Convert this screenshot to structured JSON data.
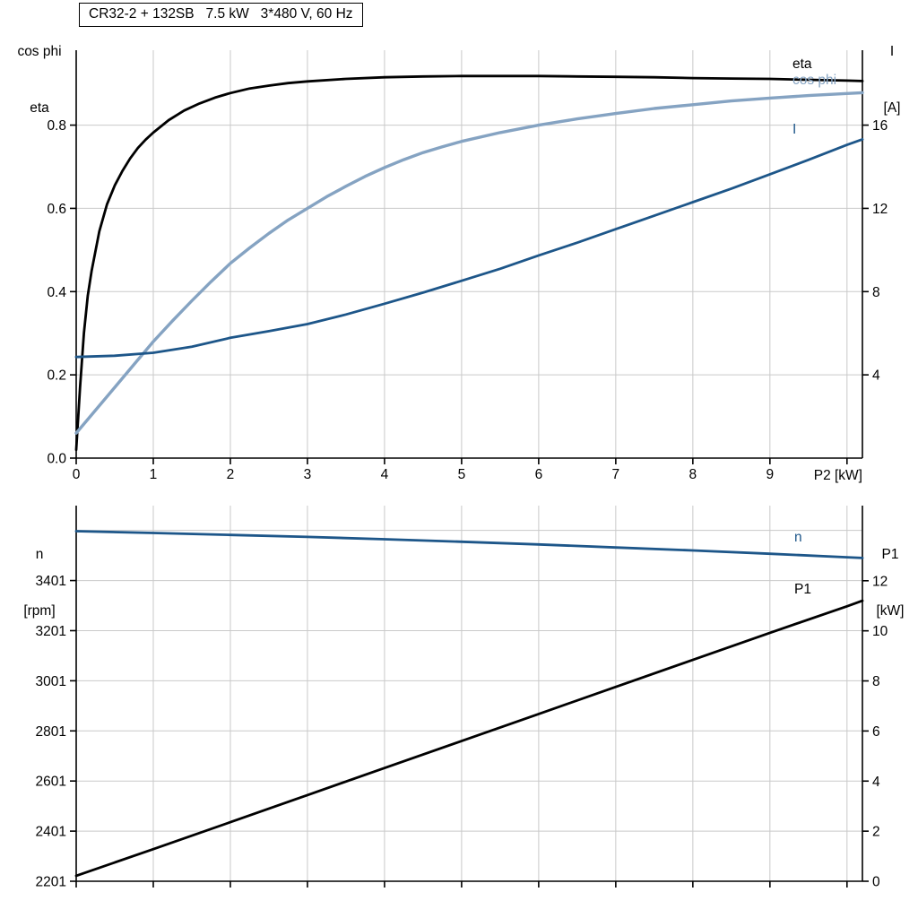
{
  "colors": {
    "black": "#000000",
    "light_blue": "#85a3c2",
    "dark_blue": "#1d5689",
    "grid": "#c9c9c9",
    "background": "#ffffff"
  },
  "chart_data": [
    {
      "type": "line",
      "title": "CR32-2 + 132SB   7.5 kW   3*480 V, 60 Hz",
      "x_axis": {
        "range": [
          0,
          10.2
        ],
        "ticks": [
          0,
          1,
          2,
          3,
          4,
          5,
          6,
          7,
          8,
          9,
          10
        ],
        "tick_labels": [
          "0",
          "1",
          "2",
          "3",
          "4",
          "5",
          "6",
          "7",
          "8",
          "9",
          ""
        ],
        "end_label": "P2 [kW]"
      },
      "left_axis": {
        "title_lines": [
          "cos phi",
          "eta"
        ],
        "range": [
          0,
          0.98
        ],
        "ticks": [
          0,
          0.2,
          0.4,
          0.6,
          0.8
        ],
        "tick_labels": [
          "0.0",
          "0.2",
          "0.4",
          "0.6",
          "0.8"
        ]
      },
      "right_axis": {
        "title_lines": [
          "I",
          "[A]"
        ],
        "range": [
          0,
          19.6
        ],
        "ticks": [
          4,
          8,
          12,
          16
        ],
        "tick_labels": [
          "4",
          "8",
          "12",
          "16"
        ]
      },
      "h_grid": [
        0.2,
        0.4,
        0.6,
        0.8
      ],
      "series": [
        {
          "name": "eta",
          "label": "eta",
          "axis": "left",
          "color": "#000000",
          "width": 2.8,
          "x": [
            0,
            0.05,
            0.1,
            0.15,
            0.2,
            0.3,
            0.4,
            0.5,
            0.6,
            0.7,
            0.8,
            0.9,
            1,
            1.2,
            1.4,
            1.6,
            1.8,
            2,
            2.25,
            2.5,
            2.75,
            3,
            3.5,
            4,
            4.5,
            5,
            5.5,
            6,
            6.5,
            7,
            7.5,
            8,
            8.5,
            9,
            9.5,
            10,
            10.2
          ],
          "y": [
            0.02,
            0.17,
            0.3,
            0.39,
            0.45,
            0.545,
            0.61,
            0.655,
            0.69,
            0.72,
            0.745,
            0.765,
            0.782,
            0.812,
            0.835,
            0.852,
            0.866,
            0.877,
            0.888,
            0.895,
            0.901,
            0.905,
            0.911,
            0.915,
            0.917,
            0.918,
            0.918,
            0.918,
            0.917,
            0.916,
            0.915,
            0.913,
            0.912,
            0.911,
            0.909,
            0.907,
            0.906
          ]
        },
        {
          "name": "cos-phi",
          "label": "cos phi",
          "axis": "left",
          "color": "#85a3c2",
          "width": 3.4,
          "x": [
            0,
            0.25,
            0.5,
            0.75,
            1,
            1.25,
            1.5,
            1.75,
            2,
            2.25,
            2.5,
            2.75,
            3,
            3.25,
            3.5,
            3.75,
            4,
            4.25,
            4.5,
            4.75,
            5,
            5.5,
            6,
            6.5,
            7,
            7.5,
            8,
            8.5,
            9,
            9.5,
            10,
            10.2
          ],
          "y": [
            0.06,
            0.115,
            0.17,
            0.225,
            0.28,
            0.33,
            0.378,
            0.424,
            0.468,
            0.505,
            0.54,
            0.572,
            0.6,
            0.628,
            0.653,
            0.677,
            0.698,
            0.717,
            0.734,
            0.748,
            0.761,
            0.782,
            0.8,
            0.815,
            0.828,
            0.84,
            0.849,
            0.858,
            0.865,
            0.871,
            0.876,
            0.878
          ]
        },
        {
          "name": "I",
          "label": "I",
          "axis": "right",
          "color": "#1d5689",
          "width": 2.8,
          "x": [
            0,
            0.5,
            1,
            1.5,
            2,
            2.5,
            3,
            3.5,
            4,
            4.5,
            5,
            5.5,
            6,
            6.5,
            7,
            7.5,
            8,
            8.5,
            9,
            9.5,
            10,
            10.2
          ],
          "y": [
            4.86,
            4.92,
            5.06,
            5.35,
            5.78,
            6.1,
            6.44,
            6.9,
            7.42,
            7.95,
            8.52,
            9.1,
            9.74,
            10.35,
            11.0,
            11.65,
            12.3,
            12.95,
            13.64,
            14.33,
            15.05,
            15.32
          ]
        }
      ]
    },
    {
      "type": "line",
      "title": "",
      "x_axis": {
        "range": [
          0,
          10.2
        ],
        "ticks": [
          0,
          1,
          2,
          3,
          4,
          5,
          6,
          7,
          8,
          9,
          10
        ],
        "tick_labels": [
          "",
          "",
          "",
          "",
          "",
          "",
          "",
          "",
          "",
          "",
          ""
        ],
        "end_label": ""
      },
      "left_axis": {
        "title_lines": [
          "n",
          "[rpm]"
        ],
        "range": [
          2201,
          3700
        ],
        "ticks": [
          2201,
          2401,
          2601,
          2801,
          3001,
          3201,
          3401
        ],
        "tick_labels": [
          "2201",
          "2401",
          "2601",
          "2801",
          "3001",
          "3201",
          "3401"
        ]
      },
      "right_axis": {
        "title_lines": [
          "P1",
          "[kW]"
        ],
        "range": [
          0,
          15
        ],
        "ticks": [
          0,
          2,
          4,
          6,
          8,
          10,
          12
        ],
        "tick_labels": [
          "0",
          "2",
          "4",
          "6",
          "8",
          "10",
          "12"
        ]
      },
      "h_grid": [
        2401,
        2601,
        2801,
        3001,
        3201,
        3401,
        3601
      ],
      "series": [
        {
          "name": "n",
          "label": "n",
          "axis": "left",
          "color": "#1d5689",
          "width": 2.8,
          "x": [
            0,
            1,
            2,
            3,
            4,
            5,
            6,
            7,
            8,
            9,
            10,
            10.2
          ],
          "y": [
            3598,
            3591,
            3583,
            3575,
            3566,
            3556,
            3545,
            3533,
            3521,
            3508,
            3494,
            3491
          ]
        },
        {
          "name": "P1",
          "label": "P1",
          "axis": "right",
          "color": "#000000",
          "width": 2.8,
          "x": [
            0,
            1,
            2,
            3,
            4,
            5,
            6,
            7,
            8,
            9,
            10,
            10.2
          ],
          "y": [
            0.22,
            1.28,
            2.36,
            3.44,
            4.52,
            5.6,
            6.68,
            7.76,
            8.84,
            9.92,
            10.98,
            11.2
          ]
        }
      ]
    }
  ]
}
